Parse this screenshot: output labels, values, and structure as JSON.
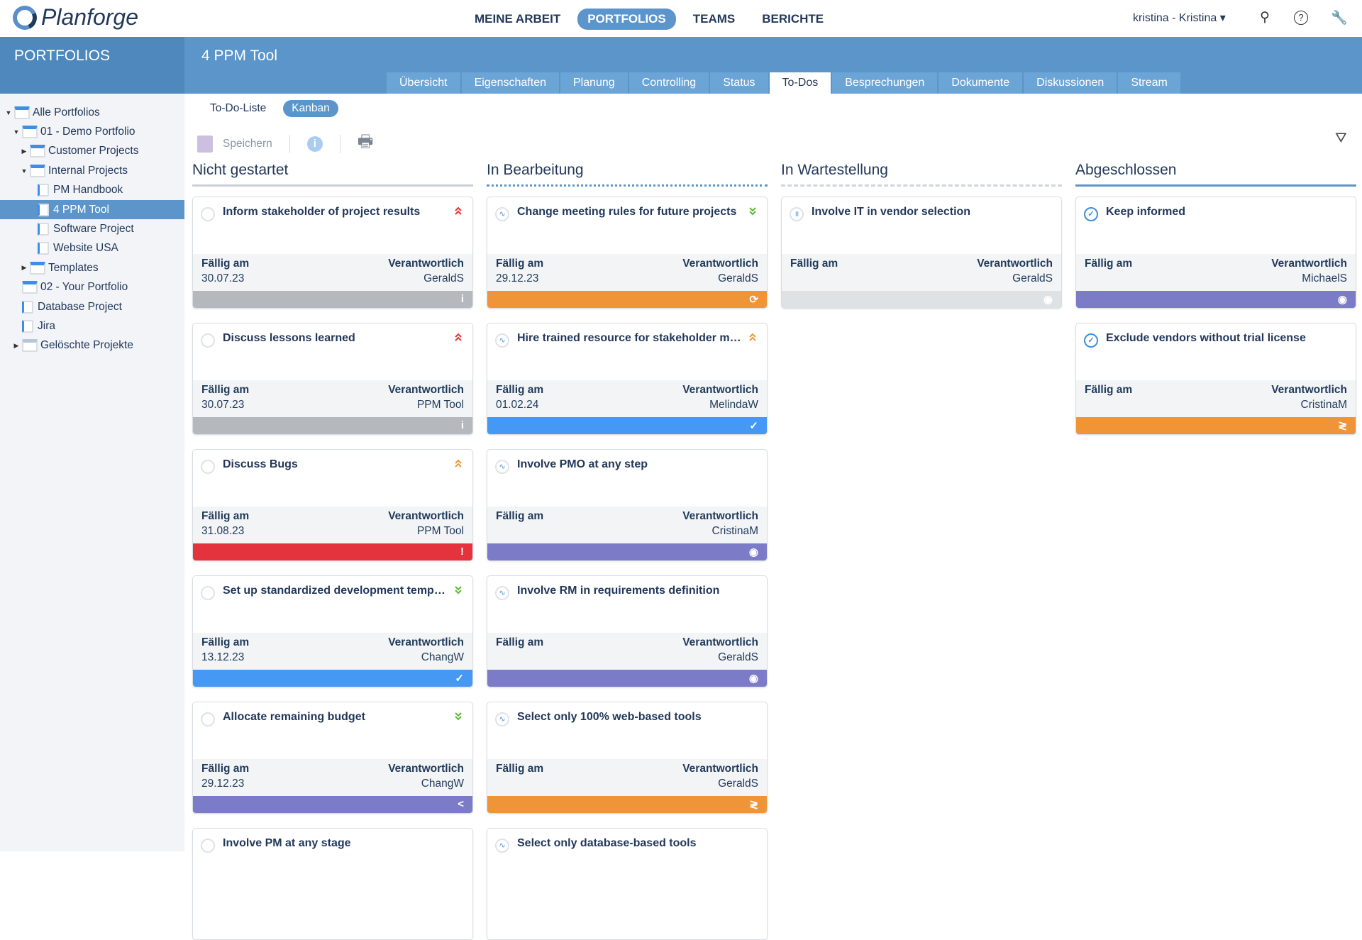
{
  "app": {
    "logo": "Planforge",
    "nav": [
      "MEINE ARBEIT",
      "PORTFOLIOS",
      "TEAMS",
      "BERICHTE"
    ],
    "nav_active": 1,
    "user": "kristina - Kristina ▾",
    "icons": [
      "search-icon",
      "help-icon",
      "tools-icon"
    ]
  },
  "header": {
    "section": "PORTFOLIOS",
    "project": "4 PPM Tool",
    "tabs": [
      "Übersicht",
      "Eigenschaften",
      "Planung",
      "Controlling",
      "Status",
      "To-Dos",
      "Besprechungen",
      "Dokumente",
      "Diskussionen",
      "Stream"
    ],
    "active_tab": 5
  },
  "sidebar": {
    "items": [
      {
        "label": "Alle Portfolios",
        "level": 0,
        "caret": "▼",
        "type": "folder"
      },
      {
        "label": "01 - Demo Portfolio",
        "level": 1,
        "caret": "▼",
        "type": "folder"
      },
      {
        "label": "Customer Projects",
        "level": 2,
        "caret": "▶",
        "type": "folder"
      },
      {
        "label": "Internal Projects",
        "level": 2,
        "caret": "▼",
        "type": "folder"
      },
      {
        "label": "PM Handbook",
        "level": 3,
        "caret": "",
        "type": "project"
      },
      {
        "label": "4 PPM Tool",
        "level": 3,
        "caret": "",
        "type": "project",
        "selected": true
      },
      {
        "label": "Software Project",
        "level": 3,
        "caret": "",
        "type": "project"
      },
      {
        "label": "Website USA",
        "level": 3,
        "caret": "",
        "type": "project"
      },
      {
        "label": "Templates",
        "level": 2,
        "caret": "▶",
        "type": "folder"
      },
      {
        "label": "02 - Your Portfolio",
        "level": 1,
        "caret": "",
        "type": "folder"
      },
      {
        "label": "Database Project",
        "level": 1,
        "caret": "",
        "type": "project"
      },
      {
        "label": "Jira",
        "level": 1,
        "caret": "",
        "type": "project"
      },
      {
        "label": "Gelöschte Projekte",
        "level": 1,
        "caret": "▶",
        "type": "trash"
      }
    ]
  },
  "view": {
    "subtabs": [
      "To-Do-Liste",
      "Kanban"
    ],
    "active_subtab": 1,
    "save_label": "Speichern"
  },
  "labels": {
    "due": "Fällig am",
    "owner": "Verantwortlich"
  },
  "colors": {
    "gray": "#b5b9bd",
    "lightgray": "#dfe2e4",
    "orange": "#f09537",
    "blue": "#4598f4",
    "red": "#e5333d",
    "purple": "#7b7bc8",
    "high": "#e5333d",
    "medium": "#f09537",
    "low": "#5cb835"
  },
  "columns": [
    {
      "title": "Nicht gestartet",
      "line": "solid-gray",
      "cards": [
        {
          "title": "Inform stakeholder of project results",
          "status": "open",
          "prio": "high",
          "due": "30.07.23",
          "owner": "GeraldS",
          "bar": "gray",
          "bar_icon": "i"
        },
        {
          "title": "Discuss lessons learned",
          "status": "open",
          "prio": "high",
          "due": "30.07.23",
          "owner": "PPM Tool",
          "bar": "gray",
          "bar_icon": "i"
        },
        {
          "title": "Discuss Bugs",
          "status": "open",
          "prio": "medium",
          "due": "31.08.23",
          "owner": "PPM Tool",
          "bar": "red",
          "bar_icon": "!"
        },
        {
          "title": "Set up standardized development templa...",
          "status": "open",
          "prio": "low",
          "due": "13.12.23",
          "owner": "ChangW",
          "bar": "blue",
          "bar_icon": "✓"
        },
        {
          "title": "Allocate remaining budget",
          "status": "open",
          "prio": "low",
          "due": "29.12.23",
          "owner": "ChangW",
          "bar": "purple",
          "bar_icon": "<"
        },
        {
          "title": "Involve PM at any stage",
          "status": "open",
          "prio": "",
          "due": "",
          "owner": "",
          "bar": "",
          "bar_icon": ""
        }
      ]
    },
    {
      "title": "In Bearbeitung",
      "line": "dotted-blue",
      "cards": [
        {
          "title": "Change meeting rules for future projects",
          "status": "progress",
          "prio": "low",
          "due": "29.12.23",
          "owner": "GeraldS",
          "bar": "orange",
          "bar_icon": "⟳"
        },
        {
          "title": "Hire trained resource for stakeholder ma...",
          "status": "progress",
          "prio": "medium",
          "due": "01.02.24",
          "owner": "MelindaW",
          "bar": "blue",
          "bar_icon": "✓"
        },
        {
          "title": "Involve PMO at any step",
          "status": "progress",
          "prio": "",
          "due": "",
          "owner": "CristinaM",
          "bar": "purple",
          "bar_icon": "◉"
        },
        {
          "title": "Involve RM in requirements definition",
          "status": "progress",
          "prio": "",
          "due": "",
          "owner": "GeraldS",
          "bar": "purple",
          "bar_icon": "◉"
        },
        {
          "title": "Select only 100% web-based tools",
          "status": "progress",
          "prio": "",
          "due": "",
          "owner": "GeraldS",
          "bar": "orange",
          "bar_icon": "≷"
        },
        {
          "title": "Select only database-based tools",
          "status": "progress",
          "prio": "",
          "due": "",
          "owner": "",
          "bar": "",
          "bar_icon": ""
        }
      ]
    },
    {
      "title": "In Wartestellung",
      "line": "dashed-gray",
      "cards": [
        {
          "title": "Involve IT in vendor selection",
          "status": "paused",
          "prio": "",
          "due": "",
          "owner": "GeraldS",
          "bar": "lightgray",
          "bar_icon": "◉"
        }
      ]
    },
    {
      "title": "Abgeschlossen",
      "line": "solid-blue",
      "cards": [
        {
          "title": "Keep informed",
          "status": "done",
          "prio": "",
          "due": "",
          "owner": "MichaelS",
          "bar": "purple",
          "bar_icon": "◉"
        },
        {
          "title": "Exclude vendors without trial license",
          "status": "done",
          "prio": "",
          "due": "",
          "owner": "CristinaM",
          "bar": "orange",
          "bar_icon": "≷"
        }
      ]
    }
  ]
}
